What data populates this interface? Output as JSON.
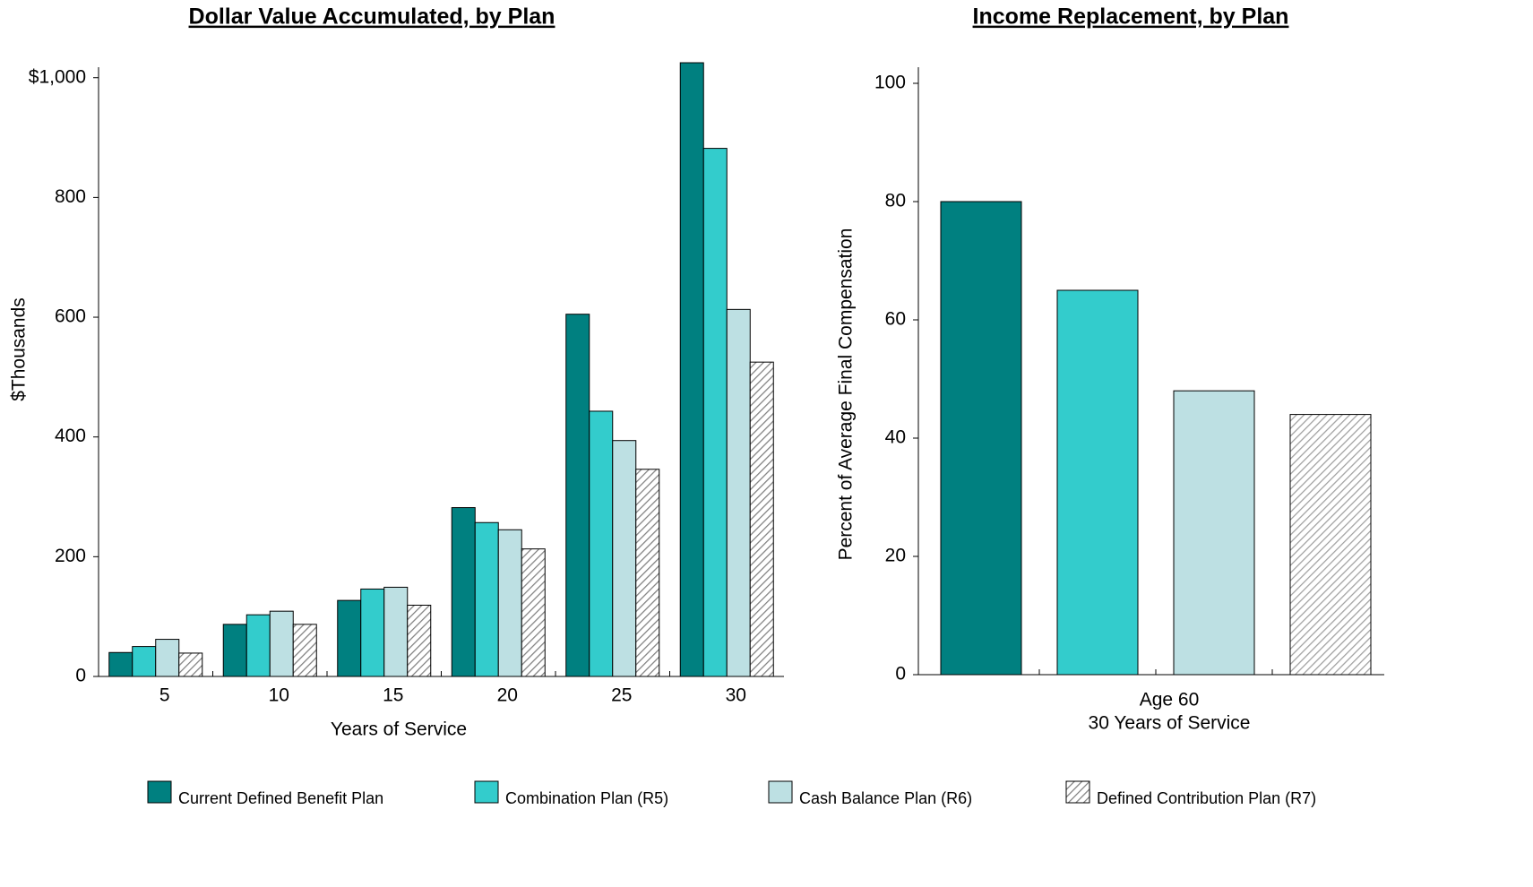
{
  "chart_data": [
    {
      "type": "bar",
      "title": "Dollar Value Accumulated, by Plan",
      "xlabel": "Years of Service",
      "ylabel": "$Thousands",
      "categories": [
        "5",
        "10",
        "15",
        "20",
        "25",
        "30"
      ],
      "series": [
        {
          "name": "Current Defined Benefit Plan",
          "color": "#008080",
          "values": [
            40,
            87,
            127,
            282,
            605,
            1025
          ]
        },
        {
          "name": "Combination Plan (R5)",
          "color": "#33CCCC",
          "values": [
            50,
            103,
            146,
            257,
            443,
            882
          ]
        },
        {
          "name": "Cash Balance Plan (R6)",
          "color": "#BDE0E3",
          "values": [
            62,
            109,
            149,
            245,
            394,
            613
          ]
        },
        {
          "name": "Defined Contribution Plan (R7)",
          "color": "#808080",
          "pattern": "hatch",
          "values": [
            39,
            87,
            119,
            213,
            346,
            525
          ]
        }
      ],
      "ylim": [
        0,
        1040
      ],
      "yticks": [
        0,
        200,
        400,
        600,
        800,
        {
          "value": 1000,
          "label": "$1,000"
        }
      ]
    },
    {
      "type": "bar",
      "title": "Income Replacement, by Plan",
      "xlabel": "30 Years of Service",
      "ylabel": "Percent of Average Final Compensation",
      "categories": [
        "Age 60"
      ],
      "series": [
        {
          "color": "#008080",
          "values": [
            80
          ]
        },
        {
          "color": "#33CCCC",
          "values": [
            65
          ]
        },
        {
          "color": "#BDE0E3",
          "values": [
            48
          ]
        },
        {
          "color": "#A0A0A0",
          "pattern": "hatch",
          "values": [
            44
          ]
        }
      ],
      "ylim": [
        0,
        105
      ],
      "yticks": [
        0,
        20,
        40,
        60,
        80,
        100
      ]
    }
  ]
}
